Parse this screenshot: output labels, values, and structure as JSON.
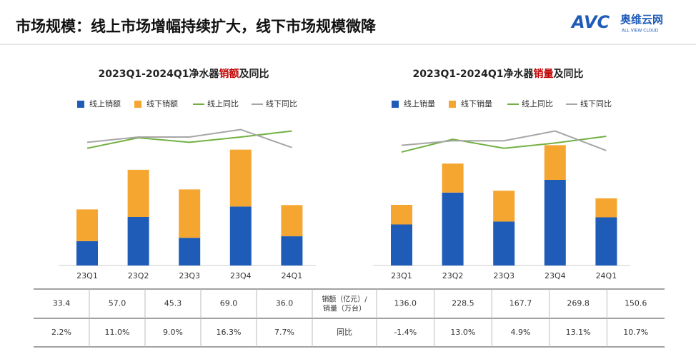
{
  "header": {
    "title": "市场规模：线上市场增幅持续扩大，线下市场规模微降",
    "logo": "AVC",
    "logo_cn": "奥维云网",
    "logo_en": "ALL VIEW CLOUD"
  },
  "chart_data": [
    {
      "type": "bar",
      "stacked": true,
      "title_parts": [
        "2023Q1-2024Q1净水器",
        "销额",
        "及同比"
      ],
      "categories": [
        "23Q1",
        "23Q2",
        "23Q3",
        "23Q4",
        "24Q1"
      ],
      "ylim": [
        0,
        85
      ],
      "y2lim": [
        -150,
        40
      ],
      "series": [
        {
          "name": "线上销额",
          "color": "#1f5cb8",
          "values": [
            14.5,
            28.9,
            16.5,
            35.1,
            17.4
          ]
        },
        {
          "name": "线下销额",
          "color": "#f5a631",
          "values": [
            18.9,
            28.1,
            28.8,
            33.9,
            18.6
          ]
        },
        {
          "name": "线上同比",
          "type": "line",
          "axis": "y2",
          "color": "#72b043",
          "values": [
            6,
            20,
            14,
            21,
            29
          ]
        },
        {
          "name": "线下同比",
          "type": "line",
          "axis": "y2",
          "color": "#a6a6a6",
          "values": [
            14,
            21,
            21,
            31,
            7
          ]
        }
      ]
    },
    {
      "type": "bar",
      "stacked": true,
      "title_parts": [
        "2023Q1-2024Q1净水器",
        "销量",
        "及同比"
      ],
      "categories": [
        "23Q1",
        "23Q2",
        "23Q3",
        "23Q4",
        "24Q1"
      ],
      "ylim": [
        0,
        320
      ],
      "y2lim": [
        -150,
        40
      ],
      "series": [
        {
          "name": "线上销量",
          "color": "#1f5cb8",
          "values": [
            92,
            163.5,
            98.5,
            192,
            108
          ]
        },
        {
          "name": "线下销量",
          "color": "#f5a631",
          "values": [
            44,
            65,
            69.2,
            77.8,
            42.6
          ]
        },
        {
          "name": "线上同比",
          "type": "line",
          "axis": "y2",
          "color": "#72b043",
          "values": [
            1,
            18,
            6,
            13,
            22
          ]
        },
        {
          "name": "线下同比",
          "type": "line",
          "axis": "y2",
          "color": "#a6a6a6",
          "values": [
            10,
            16,
            16,
            29,
            3
          ]
        }
      ]
    }
  ],
  "table": {
    "rows": [
      [
        "33.4",
        "57.0",
        "45.3",
        "69.0",
        "36.0",
        "销额（亿元）/销量（万台）",
        "136.0",
        "228.5",
        "167.7",
        "269.8",
        "150.6"
      ],
      [
        "2.2%",
        "11.0%",
        "9.0%",
        "16.3%",
        "7.7%",
        "同比",
        "-1.4%",
        "13.0%",
        "4.9%",
        "13.1%",
        "10.7%"
      ]
    ]
  }
}
